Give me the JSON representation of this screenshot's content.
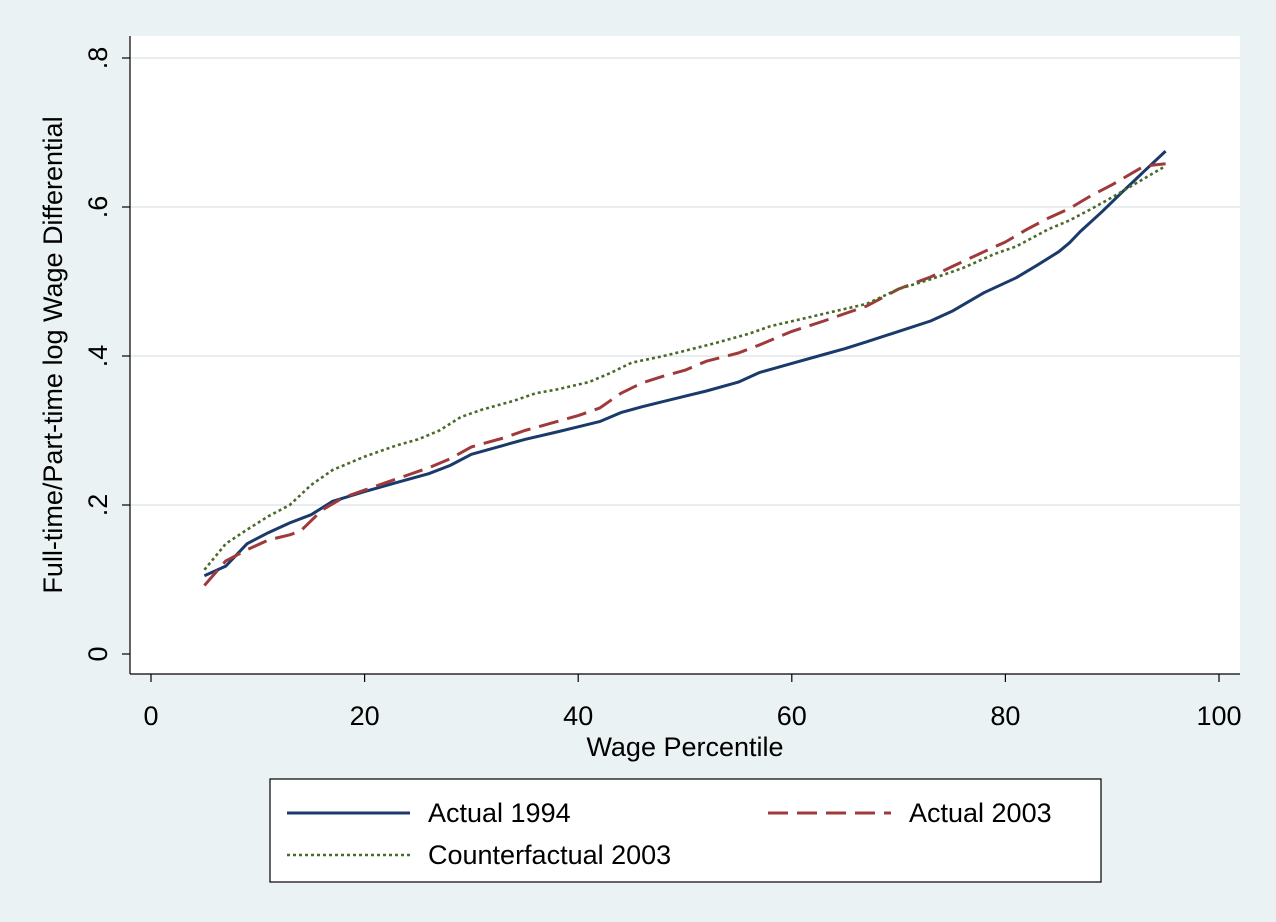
{
  "chart_data": {
    "type": "line",
    "xlabel": "Wage Percentile",
    "ylabel": "Full-time/Part-time log Wage Differential",
    "xlim": [
      0,
      100
    ],
    "ylim": [
      0,
      0.8
    ],
    "xticks": [
      0,
      20,
      40,
      60,
      80,
      100
    ],
    "xtick_labels": [
      "0",
      "20",
      "40",
      "60",
      "80",
      "100"
    ],
    "yticks": [
      0,
      0.2,
      0.4,
      0.6,
      0.8
    ],
    "ytick_labels": [
      "0",
      ".2",
      ".4",
      ".6",
      ".8"
    ],
    "grid": "horizontal",
    "legend_position": "bottom",
    "series": [
      {
        "name": "Actual 1994",
        "color": "#1a3a6b",
        "style": "solid",
        "x": [
          5,
          7,
          9,
          11,
          13,
          15,
          17,
          20,
          23,
          26,
          28,
          30,
          33,
          35,
          38,
          40,
          42,
          44,
          46,
          48,
          50,
          52,
          55,
          57,
          60,
          63,
          65,
          67,
          70,
          73,
          75,
          78,
          81,
          83,
          85,
          86,
          87,
          89,
          91,
          93,
          95
        ],
        "values": [
          0.105,
          0.118,
          0.148,
          0.163,
          0.176,
          0.187,
          0.205,
          0.218,
          0.23,
          0.242,
          0.253,
          0.268,
          0.28,
          0.288,
          0.298,
          0.305,
          0.312,
          0.324,
          0.332,
          0.339,
          0.346,
          0.353,
          0.365,
          0.378,
          0.39,
          0.402,
          0.41,
          0.419,
          0.433,
          0.447,
          0.46,
          0.485,
          0.505,
          0.522,
          0.54,
          0.552,
          0.567,
          0.593,
          0.621,
          0.648,
          0.675
        ]
      },
      {
        "name": "Actual 2003",
        "color": "#a03a3a",
        "style": "dashed",
        "x": [
          5,
          7,
          9,
          11,
          13,
          14,
          16,
          18,
          20,
          23,
          26,
          28,
          30,
          33,
          35,
          38,
          40,
          42,
          44,
          46,
          48,
          50,
          52,
          55,
          57,
          60,
          63,
          65,
          67,
          70,
          73,
          75,
          78,
          80,
          82,
          84,
          86,
          88,
          90,
          93,
          95
        ],
        "values": [
          0.092,
          0.125,
          0.14,
          0.153,
          0.16,
          0.165,
          0.193,
          0.21,
          0.22,
          0.235,
          0.25,
          0.262,
          0.278,
          0.29,
          0.3,
          0.312,
          0.32,
          0.33,
          0.35,
          0.364,
          0.373,
          0.381,
          0.393,
          0.404,
          0.415,
          0.433,
          0.447,
          0.457,
          0.467,
          0.49,
          0.506,
          0.52,
          0.54,
          0.553,
          0.57,
          0.585,
          0.598,
          0.615,
          0.63,
          0.655,
          0.658
        ]
      },
      {
        "name": "Counterfactual 2003",
        "color": "#4a6a2a",
        "style": "dotted",
        "x": [
          5,
          7,
          9,
          11,
          13,
          15,
          17,
          20,
          23,
          25,
          27,
          29,
          31,
          34,
          36,
          38,
          41,
          43,
          45,
          48,
          50,
          53,
          56,
          58,
          61,
          64,
          67,
          70,
          73,
          76,
          79,
          81,
          84,
          86,
          88,
          90,
          92,
          95
        ],
        "values": [
          0.113,
          0.148,
          0.167,
          0.185,
          0.2,
          0.227,
          0.247,
          0.265,
          0.28,
          0.288,
          0.3,
          0.318,
          0.328,
          0.34,
          0.35,
          0.355,
          0.365,
          0.377,
          0.391,
          0.4,
          0.407,
          0.418,
          0.43,
          0.44,
          0.45,
          0.46,
          0.47,
          0.49,
          0.503,
          0.518,
          0.537,
          0.547,
          0.57,
          0.582,
          0.597,
          0.613,
          0.63,
          0.655
        ]
      }
    ]
  }
}
